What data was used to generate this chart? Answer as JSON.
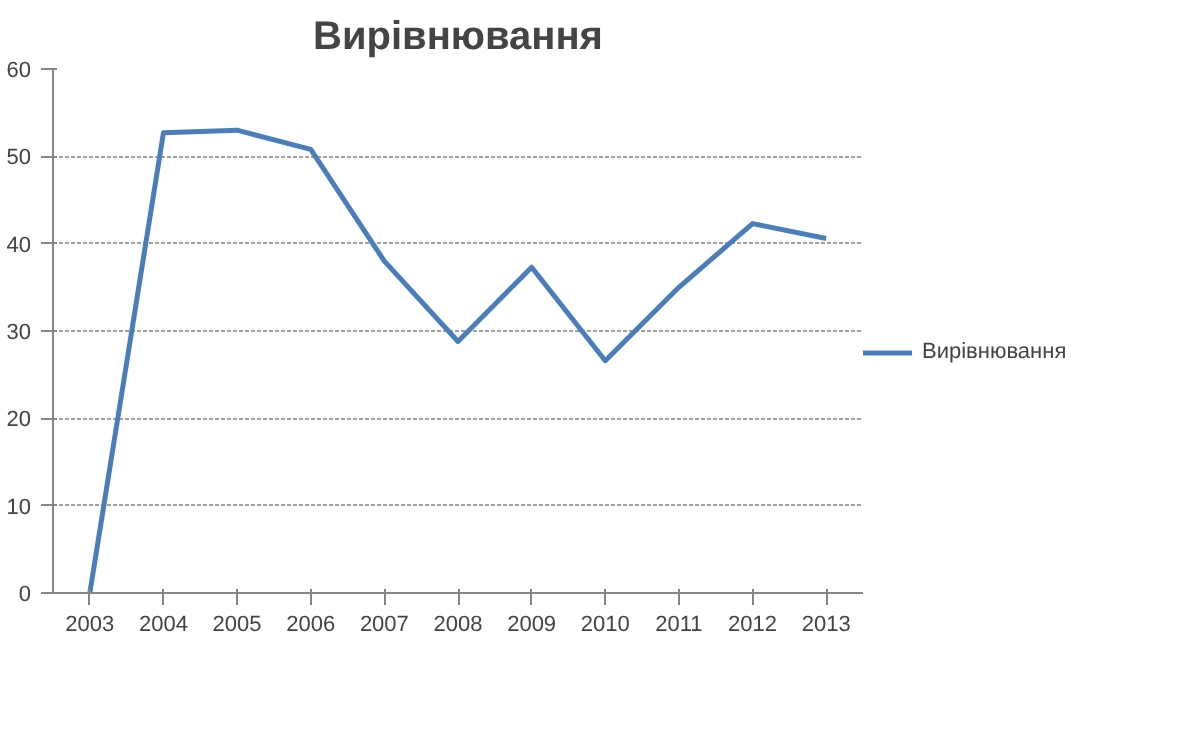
{
  "chart_data": {
    "type": "line",
    "title": "Вирівнювання",
    "categories": [
      "2003",
      "2004",
      "2005",
      "2006",
      "2007",
      "2008",
      "2009",
      "2010",
      "2011",
      "2012",
      "2013"
    ],
    "series": [
      {
        "name": "Вирівнювання",
        "color": "#4a7ebb",
        "values": [
          0,
          52.7,
          53,
          50.8,
          38,
          28.8,
          37.3,
          26.6,
          35,
          42.3,
          40.6
        ]
      }
    ],
    "ylim": [
      0,
      60
    ],
    "yticks": [
      0,
      10,
      20,
      30,
      40,
      50,
      60
    ],
    "grid": "y",
    "legend": "right",
    "marker": "none",
    "line_style": "solid"
  }
}
